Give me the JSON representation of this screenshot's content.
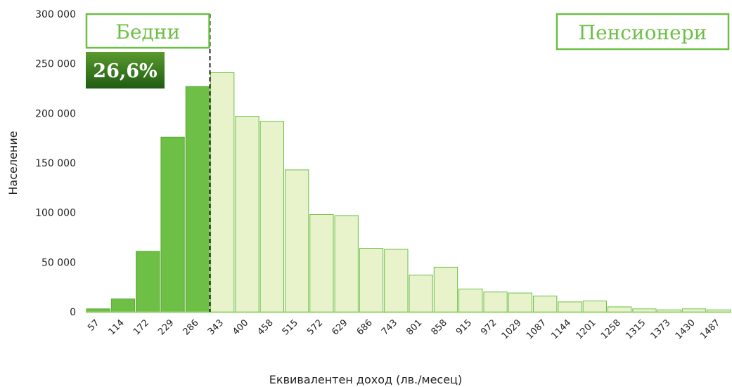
{
  "colors": {
    "poor_fill": "#6dbf45",
    "poor_stroke": "#5aa935",
    "rest_fill": "#e8f3cb",
    "rest_stroke": "#6dbf45",
    "box_text": "#6dbf45",
    "pct_top": "#5a9a2e",
    "pct_bottom": "#1f5c12",
    "divider": "#222222"
  },
  "chart_data": {
    "type": "bar",
    "xlabel": "Еквивалентен доход (лв./месец)",
    "ylabel": "Население",
    "ylim": [
      0,
      300000
    ],
    "yticks": [
      "0",
      "50 000",
      "100 000",
      "150 000",
      "200 000",
      "250 000",
      "300 000"
    ],
    "categories": [
      "57",
      "114",
      "172",
      "229",
      "286",
      "343",
      "400",
      "458",
      "515",
      "572",
      "629",
      "686",
      "743",
      "801",
      "858",
      "915",
      "972",
      "1029",
      "1087",
      "1144",
      "1201",
      "1258",
      "1315",
      "1373",
      "1430",
      "1487"
    ],
    "values": [
      3000,
      13000,
      61000,
      176000,
      227000,
      241000,
      197000,
      192000,
      143000,
      98000,
      97000,
      64000,
      63000,
      37000,
      45000,
      23000,
      20000,
      19000,
      16000,
      10000,
      11000,
      5000,
      3000,
      2000,
      3000,
      2000
    ],
    "highlight_count": 5,
    "annotations": {
      "poor_label": "Бедни",
      "poor_percent": "26,6%",
      "pensioners_label": "Пенсионери"
    }
  }
}
